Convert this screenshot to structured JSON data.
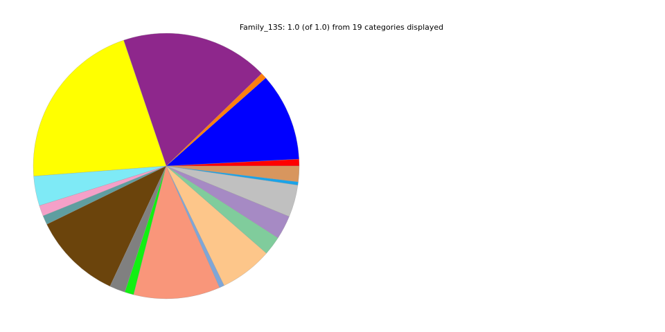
{
  "chart_data": {
    "type": "pie",
    "title": "Family_13S: 1.0 (of 1.0) from 19 categories displayed",
    "start_angle": 0,
    "counterclock": true,
    "values": [
      0.0083,
      0.107,
      0.0072,
      0.179,
      0.21,
      0.036,
      0.013,
      0.011,
      0.108,
      0.019,
      0.011,
      0.105,
      0.006,
      0.064,
      0.023,
      0.029,
      0.039,
      0.004,
      0.019
    ],
    "colors": [
      "#ff0000",
      "#0000ff",
      "#ff7f0e",
      "#8e278c",
      "#ffff00",
      "#7eeaf6",
      "#f4a0c8",
      "#5f9ea0",
      "#6b440c",
      "#808080",
      "#12f012",
      "#f9967a",
      "#7ea6d8",
      "#fdc68a",
      "#80cc9c",
      "#a68ac4",
      "#c0c0c0",
      "#1aa3e8",
      "#d8965e"
    ]
  }
}
